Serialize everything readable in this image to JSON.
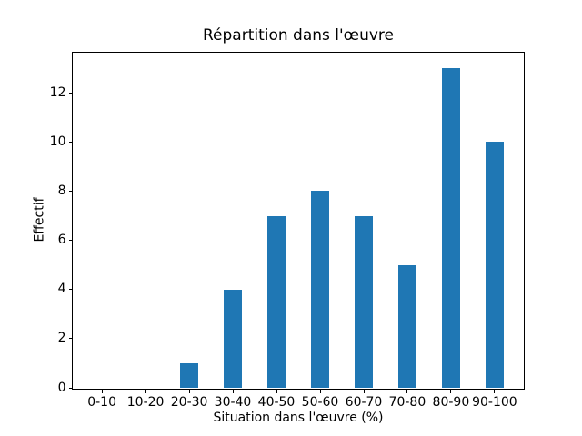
{
  "figure": {
    "background": "#ffffff"
  },
  "chart_data": {
    "type": "bar",
    "title": "Répartition dans l'œuvre",
    "xlabel": "Situation dans l'œuvre (%)",
    "ylabel": "Effectif",
    "categories": [
      "0-10",
      "10-20",
      "20-30",
      "30-40",
      "40-50",
      "50-60",
      "60-70",
      "70-80",
      "80-90",
      "90-100"
    ],
    "values": [
      0,
      0,
      1,
      4,
      7,
      8,
      7,
      5,
      13,
      10
    ],
    "yticks": [
      0,
      2,
      4,
      6,
      8,
      10,
      12
    ],
    "ylim": [
      0,
      13.65
    ],
    "bar_color": "#1f77b4",
    "axis_color": "#000000",
    "text_color": "#000000",
    "grid": false,
    "legend_position": "none"
  }
}
